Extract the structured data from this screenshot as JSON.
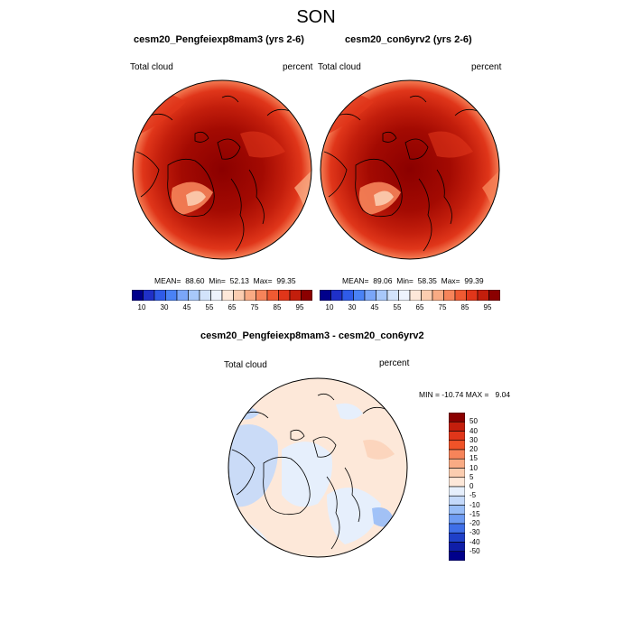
{
  "figure": {
    "title": "SON"
  },
  "chart_data": [
    {
      "type": "heatmap",
      "projection": "north-polar-stereographic",
      "title": "cesm20_Pengfeiexp8mam3 (yrs 2-6)",
      "variable_label": "Total cloud",
      "units_label": "percent",
      "stats": {
        "mean": "88.60",
        "min": "52.13",
        "max": "99.35"
      },
      "stats_text": "MEAN=  88.60  Min=  52.13  Max=  99.35",
      "colorbar": {
        "orientation": "horizontal",
        "ticks": [
          "10",
          "30",
          "45",
          "55",
          "65",
          "75",
          "85",
          "95"
        ],
        "colors": [
          "#00008b",
          "#1f30c8",
          "#2f5be8",
          "#4a82f5",
          "#7aa6f8",
          "#a8c8fa",
          "#d2e3fb",
          "#eef3fd",
          "#fde8d9",
          "#fbcdb0",
          "#f9ab84",
          "#f6845a",
          "#ef5a32",
          "#e0361a",
          "#c31e0c",
          "#8b0000"
        ]
      }
    },
    {
      "type": "heatmap",
      "projection": "north-polar-stereographic",
      "title": "cesm20_con6yrv2 (yrs 2-6)",
      "variable_label": "Total cloud",
      "units_label": "percent",
      "stats": {
        "mean": "89.06",
        "min": "58.35",
        "max": "99.39"
      },
      "stats_text": "MEAN=  89.06  Min=  58.35  Max=  99.39",
      "colorbar": {
        "orientation": "horizontal",
        "ticks": [
          "10",
          "30",
          "45",
          "55",
          "65",
          "75",
          "85",
          "95"
        ],
        "colors": [
          "#00008b",
          "#1f30c8",
          "#2f5be8",
          "#4a82f5",
          "#7aa6f8",
          "#a8c8fa",
          "#d2e3fb",
          "#eef3fd",
          "#fde8d9",
          "#fbcdb0",
          "#f9ab84",
          "#f6845a",
          "#ef5a32",
          "#e0361a",
          "#c31e0c",
          "#8b0000"
        ]
      }
    },
    {
      "type": "heatmap",
      "projection": "north-polar-stereographic",
      "title": "cesm20_Pengfeiexp8mam3 - cesm20_con6yrv2",
      "variable_label": "Total cloud",
      "units_label": "percent",
      "stats": {
        "min": "-10.74",
        "max": "9.04"
      },
      "stats_text": "MIN = -10.74 MAX =   9.04",
      "colorbar": {
        "orientation": "vertical",
        "ticks": [
          "50",
          "40",
          "30",
          "20",
          "15",
          "10",
          "5",
          "0",
          "-5",
          "-10",
          "-15",
          "-20",
          "-30",
          "-40",
          "-50"
        ],
        "colors": [
          "#8b0000",
          "#c31e0c",
          "#e0361a",
          "#f05328",
          "#f6845a",
          "#f9ab84",
          "#fbcdb0",
          "#fde8d9",
          "#e6effc",
          "#c4d9fa",
          "#98bdf7",
          "#6e9cf3",
          "#3f6fe8",
          "#1f40c8",
          "#0f1ea8",
          "#00008b"
        ]
      }
    }
  ]
}
